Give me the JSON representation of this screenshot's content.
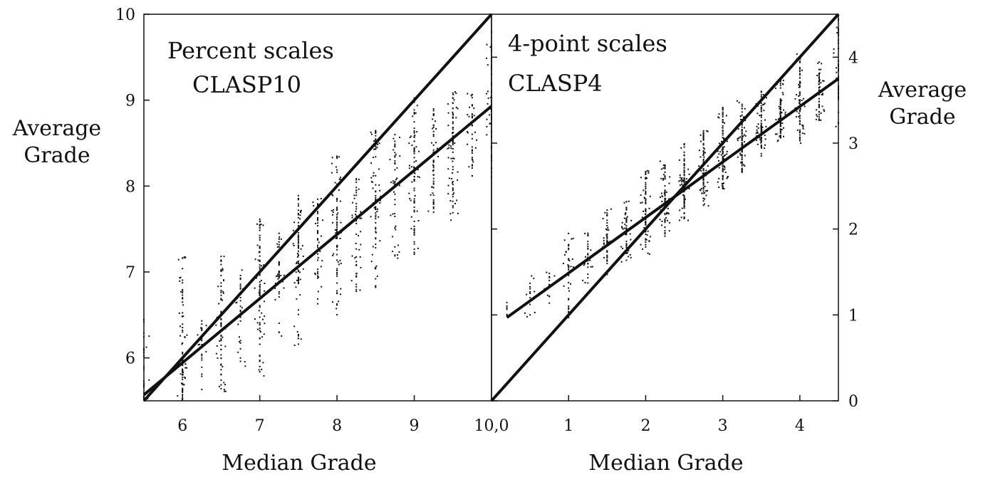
{
  "chart_data": [
    {
      "type": "scatter",
      "annotations": [
        "Percent scales",
        "CLASP10"
      ],
      "xlabel": "Median Grade",
      "ylabel": [
        "Average",
        "Grade"
      ],
      "xlim": [
        5.5,
        10
      ],
      "ylim": [
        5.5,
        10
      ],
      "xticks": [
        6,
        7,
        8,
        9
      ],
      "xtick_labels": [
        "6",
        "7",
        "8",
        "9"
      ],
      "corner_label": "10,0",
      "yticks": [
        6,
        7,
        8,
        9,
        10
      ],
      "ytick_labels": [
        "6",
        "7",
        "8",
        "9",
        "10"
      ],
      "grid": false,
      "lines": [
        {
          "kind": "identity",
          "x": [
            5.5,
            10
          ],
          "y": [
            5.5,
            10
          ]
        },
        {
          "kind": "fit",
          "x": [
            5.5,
            10
          ],
          "y": [
            5.57,
            8.93
          ]
        }
      ],
      "point_groups": [
        {
          "x": 5.5,
          "center": 5.55,
          "spread_up": 0.9,
          "spread_down": 0.05,
          "count": 40
        },
        {
          "x": 6.0,
          "center": 6.0,
          "spread_up": 1.2,
          "spread_down": 0.5,
          "count": 90
        },
        {
          "x": 6.25,
          "center": 6.2,
          "spread_up": 0.3,
          "spread_down": 0.6,
          "count": 25
        },
        {
          "x": 6.5,
          "center": 6.4,
          "spread_up": 0.85,
          "spread_down": 0.8,
          "count": 80
        },
        {
          "x": 6.75,
          "center": 6.55,
          "spread_up": 0.5,
          "spread_down": 0.65,
          "count": 40
        },
        {
          "x": 7.0,
          "center": 6.75,
          "spread_up": 0.9,
          "spread_down": 1.0,
          "count": 90
        },
        {
          "x": 7.25,
          "center": 6.95,
          "spread_up": 0.55,
          "spread_down": 0.7,
          "count": 45
        },
        {
          "x": 7.5,
          "center": 7.1,
          "spread_up": 0.8,
          "spread_down": 1.0,
          "count": 80
        },
        {
          "x": 7.75,
          "center": 7.3,
          "spread_up": 0.6,
          "spread_down": 0.8,
          "count": 50
        },
        {
          "x": 8.0,
          "center": 7.45,
          "spread_up": 0.9,
          "spread_down": 1.0,
          "count": 90
        },
        {
          "x": 8.25,
          "center": 7.65,
          "spread_up": 0.6,
          "spread_down": 0.9,
          "count": 55
        },
        {
          "x": 8.5,
          "center": 7.8,
          "spread_up": 0.85,
          "spread_down": 1.0,
          "count": 85
        },
        {
          "x": 8.75,
          "center": 8.0,
          "spread_up": 0.6,
          "spread_down": 0.85,
          "count": 55
        },
        {
          "x": 9.0,
          "center": 8.2,
          "spread_up": 0.85,
          "spread_down": 1.0,
          "count": 90
        },
        {
          "x": 9.25,
          "center": 8.35,
          "spread_up": 0.55,
          "spread_down": 0.7,
          "count": 55
        },
        {
          "x": 9.5,
          "center": 8.5,
          "spread_up": 0.6,
          "spread_down": 0.9,
          "count": 85
        },
        {
          "x": 9.75,
          "center": 8.7,
          "spread_up": 0.4,
          "spread_down": 0.6,
          "count": 50
        },
        {
          "x": 10.0,
          "center": 8.9,
          "spread_up": 1.0,
          "spread_down": 0.8,
          "count": 70
        }
      ]
    },
    {
      "type": "scatter",
      "annotations": [
        "4-point scales",
        "CLASP4"
      ],
      "xlabel": "Median Grade",
      "ylabel": [
        "Average",
        "Grade"
      ],
      "xlim": [
        0,
        4.5
      ],
      "ylim": [
        0,
        4.5
      ],
      "xticks": [
        1,
        2,
        3,
        4
      ],
      "xtick_labels": [
        "1",
        "2",
        "3",
        "4"
      ],
      "yticks": [
        0,
        1,
        2,
        3,
        4
      ],
      "ytick_labels": [
        "0",
        "1",
        "2",
        "3",
        "4"
      ],
      "grid": false,
      "lines": [
        {
          "kind": "identity",
          "x": [
            0,
            4.5
          ],
          "y": [
            0,
            4.5
          ]
        },
        {
          "kind": "fit",
          "x": [
            0.2,
            4.5
          ],
          "y": [
            0.97,
            3.75
          ]
        }
      ],
      "point_groups": [
        {
          "x": 0.2,
          "center": 1.05,
          "spread_up": 0.1,
          "spread_down": 0.1,
          "count": 6
        },
        {
          "x": 0.5,
          "center": 1.25,
          "spread_up": 0.25,
          "spread_down": 0.35,
          "count": 15
        },
        {
          "x": 0.75,
          "center": 1.4,
          "spread_up": 0.2,
          "spread_down": 0.3,
          "count": 15
        },
        {
          "x": 1.0,
          "center": 1.55,
          "spread_up": 0.4,
          "spread_down": 0.6,
          "count": 40
        },
        {
          "x": 1.25,
          "center": 1.7,
          "spread_up": 0.3,
          "spread_down": 0.35,
          "count": 30
        },
        {
          "x": 1.5,
          "center": 1.85,
          "spread_up": 0.4,
          "spread_down": 0.4,
          "count": 50
        },
        {
          "x": 1.75,
          "center": 2.0,
          "spread_up": 0.35,
          "spread_down": 0.4,
          "count": 60
        },
        {
          "x": 2.0,
          "center": 2.2,
          "spread_up": 0.5,
          "spread_down": 0.5,
          "count": 80
        },
        {
          "x": 2.25,
          "center": 2.35,
          "spread_up": 0.45,
          "spread_down": 0.45,
          "count": 80
        },
        {
          "x": 2.5,
          "center": 2.55,
          "spread_up": 0.45,
          "spread_down": 0.45,
          "count": 90
        },
        {
          "x": 2.75,
          "center": 2.7,
          "spread_up": 0.45,
          "spread_down": 0.45,
          "count": 90
        },
        {
          "x": 3.0,
          "center": 2.9,
          "spread_up": 0.55,
          "spread_down": 0.45,
          "count": 100
        },
        {
          "x": 3.25,
          "center": 3.05,
          "spread_up": 0.45,
          "spread_down": 0.4,
          "count": 90
        },
        {
          "x": 3.5,
          "center": 3.2,
          "spread_up": 0.45,
          "spread_down": 0.35,
          "count": 90
        },
        {
          "x": 3.75,
          "center": 3.35,
          "spread_up": 0.4,
          "spread_down": 0.35,
          "count": 80
        },
        {
          "x": 4.0,
          "center": 3.5,
          "spread_up": 0.6,
          "spread_down": 0.5,
          "count": 80
        },
        {
          "x": 4.25,
          "center": 3.6,
          "spread_up": 0.35,
          "spread_down": 0.35,
          "count": 60
        },
        {
          "x": 4.5,
          "center": 3.75,
          "spread_up": 0.7,
          "spread_down": 0.6,
          "count": 60
        }
      ]
    }
  ]
}
